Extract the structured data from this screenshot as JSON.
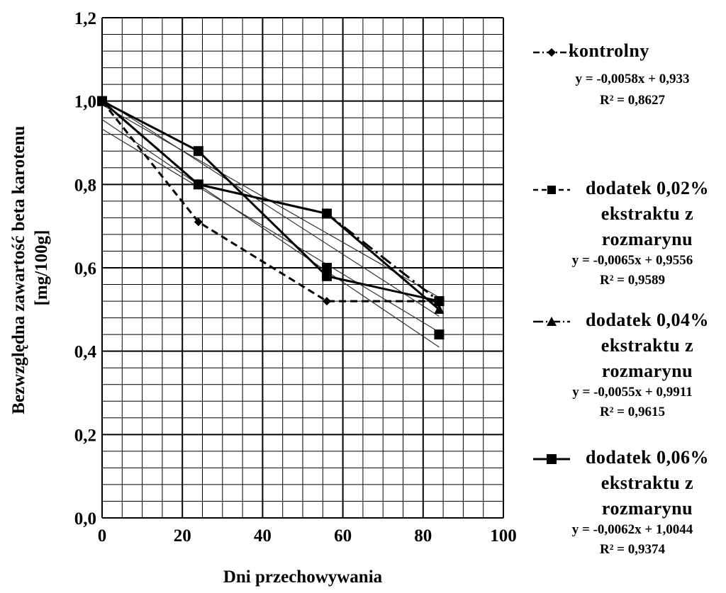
{
  "chart_data": {
    "type": "line",
    "xlabel": "Dni przechowywania",
    "ylabel": "Bezwzględna zawartość beta karotenu [mg/100g]",
    "xlim": [
      0,
      100
    ],
    "ylim": [
      0,
      1.2
    ],
    "x_ticks": [
      "0",
      "20",
      "40",
      "60",
      "80",
      "100"
    ],
    "y_ticks": [
      "0,0",
      "0,2",
      "0,4",
      "0,6",
      "0,8",
      "1,0",
      "1,2"
    ],
    "grid": true,
    "legend_position": "right",
    "series": [
      {
        "name": "kontrolny",
        "marker": "diamond",
        "line_style": "dash-dot",
        "x": [
          0,
          24,
          56,
          84
        ],
        "y": [
          1.0,
          0.71,
          0.52,
          0.52
        ],
        "trend": {
          "slope": -0.0058,
          "intercept": 0.933,
          "equation": "y = -0,0058x + 0,933",
          "r2": "R² = 0,8627"
        }
      },
      {
        "name": "dodatek 0,02% ekstraktu z rozmarynu",
        "marker": "square",
        "line_style": "dashed",
        "x": [
          0,
          24,
          56,
          84
        ],
        "y": [
          1.0,
          0.8,
          0.73,
          0.52
        ],
        "trend": {
          "slope": -0.0065,
          "intercept": 0.9556,
          "equation": "y = -0,0065x + 0,9556",
          "r2": "R² = 0,9589"
        }
      },
      {
        "name": "dodatek 0,04% ekstraktu z rozmarynu",
        "marker": "triangle",
        "line_style": "solid",
        "x": [
          0,
          24,
          56,
          84
        ],
        "y": [
          1.0,
          0.8,
          0.73,
          0.5
        ],
        "trend": {
          "slope": -0.0055,
          "intercept": 0.9911,
          "equation": "y = -0,0055x + 0,9911",
          "r2": "R² = 0,9615"
        }
      },
      {
        "name": "dodatek 0,06% ekstraktu z rozmarynu",
        "marker": "square",
        "line_style": "solid",
        "x": [
          0,
          24,
          56,
          84
        ],
        "y": [
          1.0,
          0.88,
          0.58,
          0.52
        ],
        "trend": {
          "slope": -0.0062,
          "intercept": 1.0044,
          "equation": "y = -0,0062x + 1,0044",
          "r2": "R² = 0,9374"
        }
      }
    ],
    "extra_points": [
      {
        "series": 1,
        "x": 56,
        "y": 0.6
      },
      {
        "series": 1,
        "x": 84,
        "y": 0.44
      }
    ]
  },
  "legend": [
    {
      "line1": "kontrolny",
      "line2": "",
      "line3": "",
      "equation": "y = -0,0058x + 0,933",
      "r2": "R² = 0,8627"
    },
    {
      "line1": "dodatek 0,02%",
      "line2": "ekstraktu z",
      "line3": "rozmarynu",
      "equation": "y = -0,0065x + 0,9556",
      "r2": "R² = 0,9589"
    },
    {
      "line1": "dodatek 0,04%",
      "line2": "ekstraktu z",
      "line3": "rozmarynu",
      "equation": "y = -0,0055x + 0,9911",
      "r2": "R² = 0,9615"
    },
    {
      "line1": "dodatek 0,06%",
      "line2": "ekstraktu z",
      "line3": "rozmarynu",
      "equation": "y = -0,0062x + 1,0044",
      "r2": "R² = 0,9374"
    }
  ]
}
